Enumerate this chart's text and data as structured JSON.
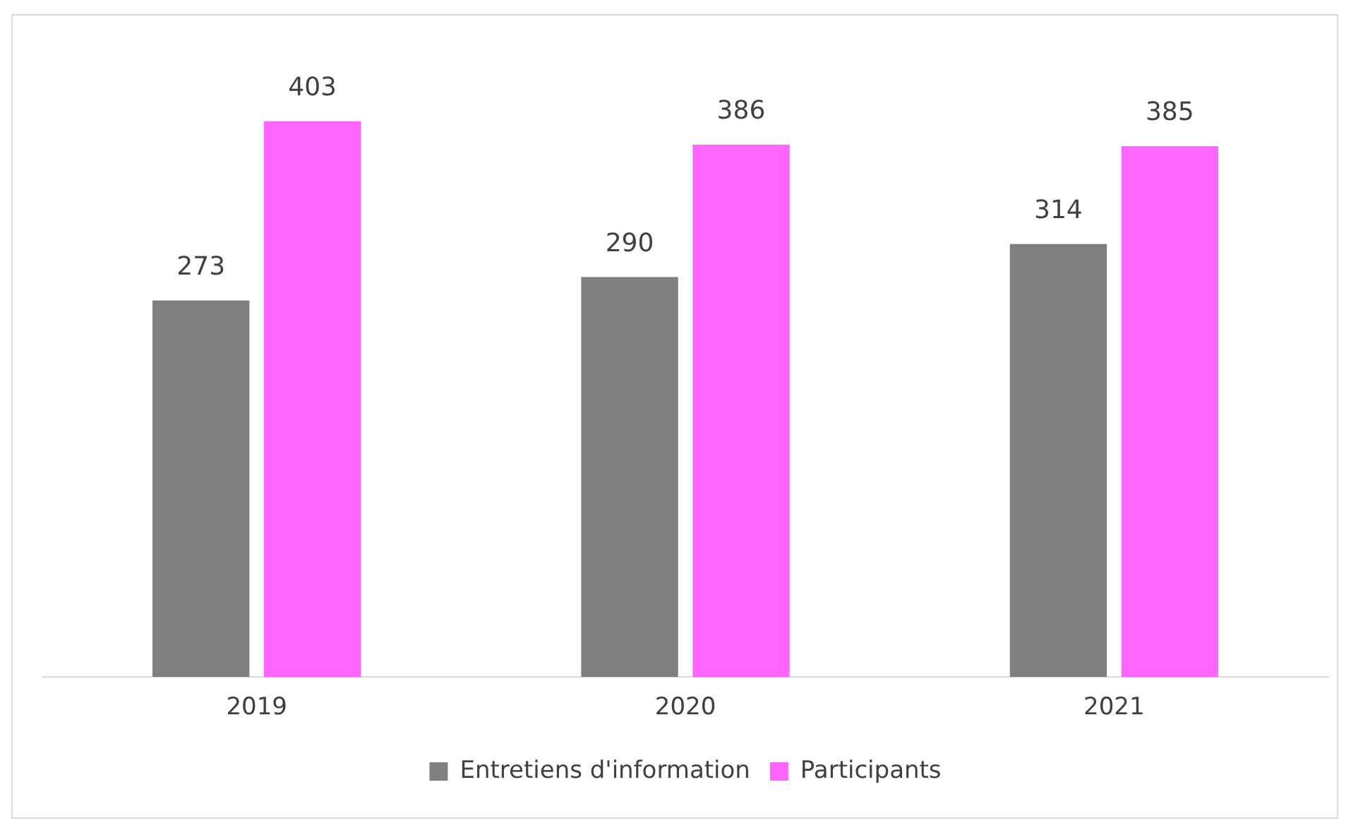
{
  "chart_data": {
    "type": "bar",
    "categories": [
      "2019",
      "2020",
      "2021"
    ],
    "series": [
      {
        "name": "Entretiens d'information",
        "color": "#7f7f7f",
        "values": [
          273,
          290,
          314
        ]
      },
      {
        "name": "Participants",
        "color": "#ff66ff",
        "values": [
          403,
          386,
          385
        ]
      }
    ],
    "data_labels": true,
    "legend": "bottom",
    "grid": false
  }
}
